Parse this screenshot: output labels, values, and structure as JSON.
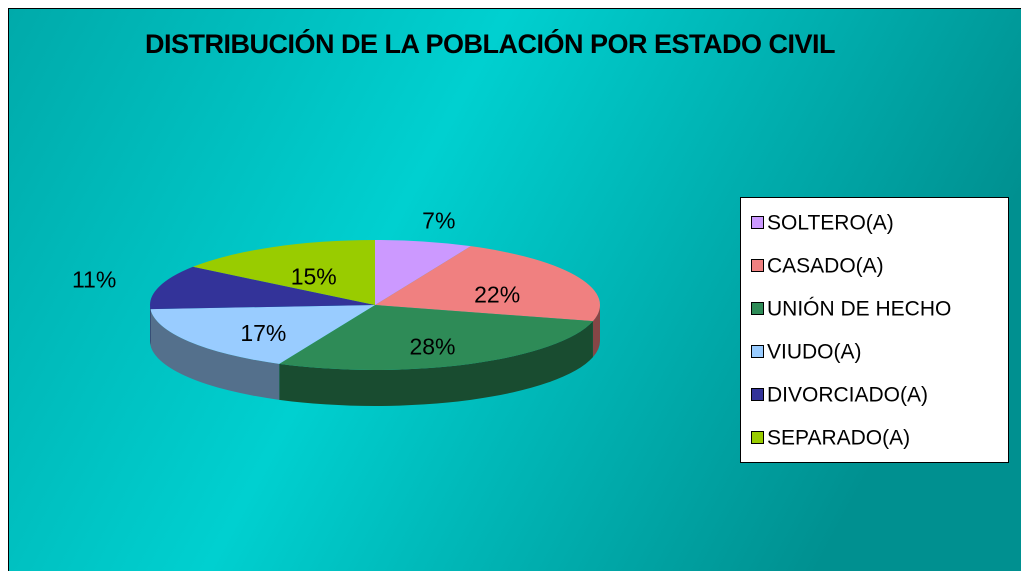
{
  "chart_data": {
    "type": "pie",
    "title": "DISTRIBUCIÓN DE LA POBLACIÓN POR ESTADO CIVIL",
    "categories": [
      "SOLTERO(A)",
      "CASADO(A)",
      "UNIÓN DE HECHO",
      "VIUDO(A)",
      "DIVORCIADO(A)",
      "SEPARADO(A)"
    ],
    "values": [
      7,
      22,
      28,
      17,
      11,
      15
    ],
    "value_labels": [
      "7%",
      "22%",
      "28%",
      "17%",
      "11%",
      "15%"
    ],
    "colors": [
      "#cc99ff",
      "#f08080",
      "#2e8b57",
      "#99ccff",
      "#333399",
      "#99cc00"
    ],
    "legend": "right"
  }
}
